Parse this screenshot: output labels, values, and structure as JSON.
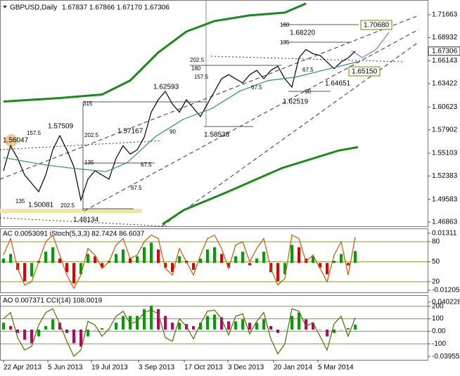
{
  "chart_data": [
    {
      "type": "line",
      "title": "GBPUSD,Daily",
      "subtitle": "1.67837 1.67866 1.67170 1.67306",
      "xlim": [
        -2.5,
        301.5
      ],
      "xticks": [
        {
          "value": 0,
          "label": "22 Apr 2013"
        },
        {
          "value": 31.5,
          "label": "5 Jun 2013"
        },
        {
          "value": 62.5,
          "label": "19 Jul 2013"
        },
        {
          "value": 96,
          "label": "3 Sep 2013"
        },
        {
          "value": 128.5,
          "label": "17 Oct 2013"
        },
        {
          "value": 159.5,
          "label": "3 Dec 2013"
        },
        {
          "value": 192,
          "label": "20 Jan 2014"
        },
        {
          "value": 223.5,
          "label": "5 Mar 2014"
        }
      ],
      "ylim": [
        1.4645,
        1.7325
      ],
      "yticks": [
        1.71663,
        1.68932,
        1.66143,
        1.63422,
        1.60623,
        1.57902,
        1.55103,
        1.52383,
        1.49583,
        1.46863
      ],
      "last_price": 1.67306,
      "x": [
        0,
        5,
        10,
        15,
        20,
        25,
        30,
        35,
        40,
        45,
        50,
        55,
        60,
        65,
        70,
        75,
        80,
        85,
        90,
        95,
        100,
        105,
        110,
        115,
        120,
        125,
        130,
        135,
        140,
        145,
        150,
        155,
        160,
        165,
        170,
        175,
        180,
        185,
        190,
        195,
        200,
        205,
        210,
        215,
        220,
        225,
        230,
        235,
        240,
        245,
        250
      ],
      "series": [
        {
          "type": "line",
          "color": "#000000",
          "values": [
            1.53,
            1.56,
            1.545,
            1.525,
            1.515,
            1.505,
            1.525,
            1.555,
            1.572,
            1.555,
            1.535,
            1.495,
            1.52,
            1.53,
            1.525,
            1.52,
            1.545,
            1.56,
            1.55,
            1.555,
            1.57,
            1.6,
            1.615,
            1.625,
            1.61,
            1.6,
            1.615,
            1.605,
            1.595,
            1.61,
            1.625,
            1.64,
            1.645,
            1.64,
            1.635,
            1.645,
            1.65,
            1.64,
            1.65,
            1.655,
            1.64,
            1.63,
            1.665,
            1.675,
            1.67,
            1.668,
            1.66,
            1.652,
            1.66,
            1.665,
            1.673
          ]
        },
        {
          "type": "line",
          "color": "#2a8c8c",
          "x": [
            0,
            28,
            48,
            73,
            88,
            108,
            128,
            148,
            168,
            188,
            208,
            228,
            252
          ],
          "values": [
            1.5458,
            1.5374,
            1.5332,
            1.529,
            1.5399,
            1.5709,
            1.5918,
            1.6044,
            1.6253,
            1.6379,
            1.6421,
            1.6505,
            1.6605
          ]
        },
        {
          "type": "line",
          "color": "#1b8a1b",
          "x": [
            0,
            40,
            70,
            90,
            110,
            130,
            150,
            175,
            200,
            215
          ],
          "values": [
            1.6128,
            1.617,
            1.6212,
            1.6379,
            1.6714,
            1.6965,
            1.7091,
            1.7158,
            1.7191,
            1.73
          ]
        },
        {
          "type": "line",
          "color": "#1b8a1b",
          "x": [
            113,
            128,
            158,
            198,
            238,
            252
          ],
          "values": [
            1.4662,
            1.483,
            1.5039,
            1.5333,
            1.5541,
            1.5583
          ]
        }
      ],
      "annotations": [
        "1.56047",
        "157.5",
        "135",
        "1.50081",
        "1.57509",
        "202.5",
        "1.48134",
        "315",
        "202.5",
        "135",
        "1.57167",
        "67.5",
        "67.5",
        "1.62593",
        "90",
        "1.58538",
        "202.5",
        "180",
        "157.5",
        "67.5",
        "1.68220",
        "180",
        "135",
        "67.5",
        "90",
        "1.62519",
        "1.64651",
        "1.70680",
        "1.65150"
      ]
    },
    {
      "type": "bar",
      "title": "AC 0.0053091 iStoch(5,3,3) 82.7424 86.6037",
      "xlim": [
        -2.5,
        301.5
      ],
      "grid": true,
      "ylim": [
        -0.013,
        0.015
      ],
      "yticks": [
        0.01311,
        -0.01205
      ],
      "y2lim": [
        4,
        99
      ],
      "y2ticks": [
        80,
        50,
        20
      ],
      "x": [
        0,
        5,
        10,
        15,
        20,
        25,
        30,
        35,
        40,
        45,
        50,
        55,
        60,
        65,
        70,
        75,
        80,
        85,
        90,
        95,
        100,
        105,
        110,
        115,
        120,
        125,
        130,
        135,
        140,
        145,
        150,
        155,
        160,
        165,
        170,
        175,
        180,
        185,
        190,
        195,
        200,
        205,
        210,
        215,
        220,
        225,
        230,
        235,
        240,
        245,
        250
      ],
      "series": [
        {
          "type": "bar",
          "up_color": "#00a000",
          "down_color": "#e00000",
          "values": [
            0.002,
            0.004,
            -0.003,
            -0.008,
            -0.006,
            0.001,
            0.005,
            0.007,
            0.002,
            -0.004,
            -0.009,
            -0.005,
            0.004,
            0.003,
            -0.002,
            0.001,
            0.004,
            0.006,
            0.002,
            0.003,
            0.007,
            0.009,
            0.006,
            -0.002,
            -0.004,
            0.003,
            0.001,
            -0.003,
            0.002,
            0.006,
            0.007,
            0.004,
            -0.002,
            0.003,
            0.005,
            -0.001,
            0.002,
            0.005,
            -0.004,
            -0.008,
            -0.005,
            0.008,
            0.007,
            0.002,
            0.003,
            -0.002,
            -0.005,
            0.001,
            0.004,
            -0.001,
            0.0053
          ]
        },
        {
          "type": "line",
          "axis": "y2",
          "color": "#c85a00",
          "values": [
            60,
            85,
            40,
            15,
            20,
            50,
            80,
            90,
            60,
            30,
            10,
            30,
            70,
            60,
            40,
            50,
            75,
            85,
            55,
            60,
            80,
            90,
            85,
            40,
            30,
            70,
            50,
            30,
            60,
            85,
            90,
            70,
            40,
            75,
            80,
            50,
            70,
            85,
            40,
            15,
            25,
            90,
            85,
            50,
            60,
            40,
            20,
            60,
            80,
            30,
            87
          ]
        }
      ]
    },
    {
      "type": "bar",
      "title": "AO 0.007371 CCI(14) 108.0019",
      "xlim": [
        -2.5,
        301.5
      ],
      "grid": true,
      "ylim": [
        -0.0445,
        0.0494
      ],
      "yticks": [
        0.040228,
        -0.039555
      ],
      "y2lim": [
        -228,
        283
      ],
      "y2ticks": [
        200,
        100,
        {
          "value": 0,
          "label": "0.00"
        },
        -100
      ],
      "x": [
        0,
        5,
        10,
        15,
        20,
        25,
        30,
        35,
        40,
        45,
        50,
        55,
        60,
        65,
        70,
        75,
        80,
        85,
        90,
        95,
        100,
        105,
        110,
        115,
        120,
        125,
        130,
        135,
        140,
        145,
        150,
        155,
        160,
        165,
        170,
        175,
        180,
        185,
        190,
        195,
        200,
        205,
        210,
        215,
        220,
        225,
        230,
        235,
        240,
        245,
        250
      ],
      "series": [
        {
          "type": "bar",
          "up_color": "#00a000",
          "down_color": "#c00060",
          "values": [
            0.01,
            0.005,
            -0.005,
            -0.015,
            -0.02,
            -0.01,
            0.005,
            0.015,
            0.01,
            -0.005,
            -0.02,
            -0.025,
            -0.01,
            0.0,
            0.002,
            0.0,
            0.01,
            0.02,
            0.02,
            0.02,
            0.03,
            0.035,
            0.03,
            0.02,
            0.01,
            0.01,
            0.008,
            0.005,
            0.01,
            0.02,
            0.022,
            0.018,
            0.012,
            0.012,
            0.015,
            0.01,
            0.01,
            0.015,
            0.005,
            -0.005,
            0.0,
            0.02,
            0.025,
            0.015,
            0.01,
            0.0,
            -0.01,
            -0.005,
            0.0,
            0.002,
            0.007
          ]
        },
        {
          "type": "line",
          "axis": "y2",
          "color": "#556b00",
          "values": [
            100,
            150,
            -50,
            -150,
            -120,
            50,
            150,
            180,
            60,
            -80,
            -200,
            -150,
            80,
            50,
            -40,
            20,
            120,
            160,
            60,
            80,
            150,
            170,
            140,
            -50,
            -80,
            100,
            40,
            -60,
            60,
            160,
            170,
            100,
            -30,
            120,
            140,
            -20,
            80,
            150,
            -60,
            -180,
            -100,
            180,
            160,
            40,
            70,
            -40,
            -150,
            60,
            120,
            -40,
            108
          ]
        }
      ]
    }
  ]
}
